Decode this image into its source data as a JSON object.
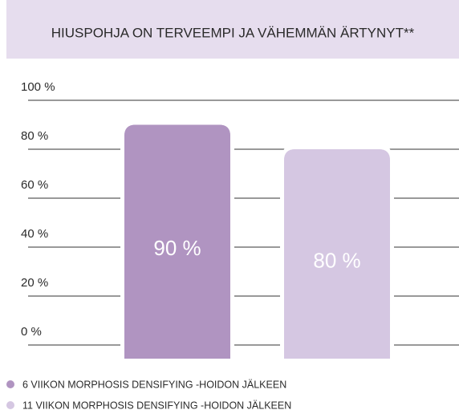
{
  "chart_data": {
    "type": "bar",
    "title": "HIUSPOHJA ON TERVEEMPI JA VÄHEMMÄN ÄRTYNYT**",
    "categories": [
      null
    ],
    "series": [
      {
        "name": "6 VIIKON MORPHOSIS DENSIFYING -HOIDON JÄLKEEN",
        "color": "#b094c1",
        "values": [
          90
        ],
        "value_labels": [
          "90 %"
        ]
      },
      {
        "name": "11 VIIKON MORPHOSIS DENSIFYING -HOIDON JÄLKEEN",
        "color": "#d5c7e2",
        "values": [
          80
        ],
        "value_labels": [
          "80 %"
        ]
      }
    ],
    "ylim": [
      0,
      100
    ],
    "yticks": [
      {
        "value": 0,
        "label": "0 %"
      },
      {
        "value": 20,
        "label": "20 %"
      },
      {
        "value": 40,
        "label": "40 %"
      },
      {
        "value": 60,
        "label": "60 %"
      },
      {
        "value": 80,
        "label": "80 %"
      },
      {
        "value": 100,
        "label": "100 %"
      }
    ],
    "grid": true
  }
}
